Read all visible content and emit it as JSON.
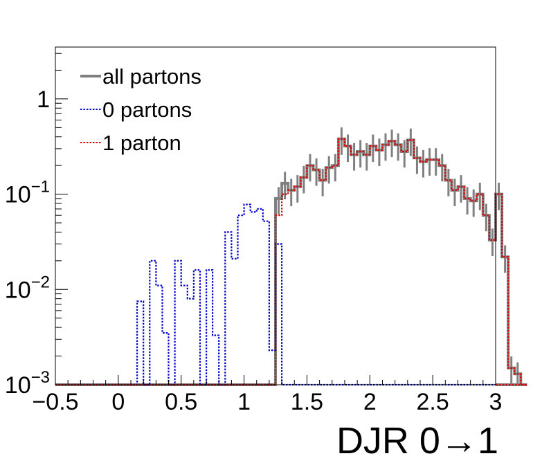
{
  "chart_data": {
    "type": "histogram",
    "xlabel": "DJR 0→1",
    "ylabel": "",
    "xlim": [
      -0.5,
      3.0
    ],
    "ylim": [
      0.001,
      3.5
    ],
    "log_y": true,
    "grid": false,
    "legend_position": "top-left",
    "bin_width": 0.05,
    "x_ticks": [
      {
        "v": -0.5,
        "label": "−0.5"
      },
      {
        "v": 0,
        "label": "0"
      },
      {
        "v": 0.5,
        "label": "0.5"
      },
      {
        "v": 1,
        "label": "1"
      },
      {
        "v": 1.5,
        "label": "1.5"
      },
      {
        "v": 2,
        "label": "2"
      },
      {
        "v": 2.5,
        "label": "2.5"
      },
      {
        "v": 3,
        "label": "3"
      }
    ],
    "y_ticks": [
      {
        "v": 0.001,
        "base": "10",
        "exp": "−3"
      },
      {
        "v": 0.01,
        "base": "10",
        "exp": "−2"
      },
      {
        "v": 0.1,
        "base": "10",
        "exp": "−1"
      },
      {
        "v": 1,
        "base": "1",
        "exp": ""
      }
    ],
    "series": [
      {
        "name": "all partons",
        "color": "#808080",
        "style": "solid",
        "x_start": 1.25,
        "values": [
          0.09,
          0.13,
          0.11,
          0.12,
          0.15,
          0.2,
          0.18,
          0.14,
          0.19,
          0.2,
          0.38,
          0.32,
          0.26,
          0.28,
          0.26,
          0.32,
          0.29,
          0.33,
          0.36,
          0.33,
          0.28,
          0.37,
          0.24,
          0.22,
          0.23,
          0.23,
          0.2,
          0.14,
          0.11,
          0.12,
          0.09,
          0.085,
          0.1,
          0.06,
          0.033,
          0.1,
          0.022,
          0.0015,
          0.0013,
          0.001
        ]
      },
      {
        "name": "0 partons",
        "color": "#0000cc",
        "style": "dotted",
        "x_start": 0.15,
        "values": [
          0.0075,
          0.001,
          0.02,
          0.011,
          0.0035,
          0.001,
          0.02,
          0.011,
          0.008,
          0.016,
          0.001,
          0.016,
          0.0033,
          0.001,
          0.04,
          0.021,
          0.06,
          0.078,
          0.065,
          0.07,
          0.052,
          0.0023,
          0.03,
          0.0009
        ]
      },
      {
        "name": "1 parton",
        "color": "#dd0000",
        "style": "dotted",
        "x_start": 1.25,
        "values": [
          0.06,
          0.1,
          0.11,
          0.12,
          0.15,
          0.2,
          0.18,
          0.14,
          0.19,
          0.2,
          0.38,
          0.32,
          0.26,
          0.28,
          0.26,
          0.32,
          0.29,
          0.33,
          0.36,
          0.33,
          0.28,
          0.37,
          0.24,
          0.22,
          0.23,
          0.23,
          0.2,
          0.14,
          0.11,
          0.12,
          0.09,
          0.085,
          0.1,
          0.06,
          0.033,
          0.1,
          0.022,
          0.0015,
          0.0013,
          0.001
        ]
      }
    ]
  }
}
